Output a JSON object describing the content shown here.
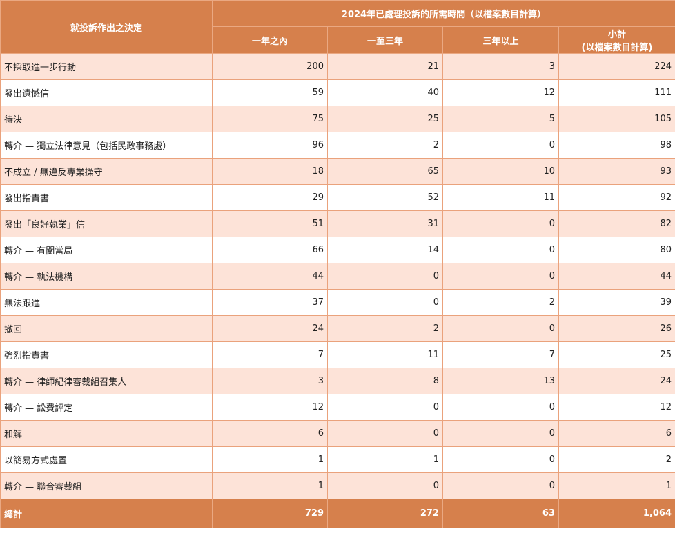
{
  "table": {
    "header": {
      "decision": "就投訴作出之決定",
      "group": "2024年已處理投訴的所需時間（以檔案數目計算）",
      "columns": [
        "一年之內",
        "一至三年",
        "三年以上"
      ],
      "subtotal": [
        "小計",
        "(以檔案數目計算)"
      ]
    },
    "rows": [
      [
        "不採取進一步行動",
        "200",
        "21",
        "3",
        "224"
      ],
      [
        "發出遺憾信",
        "59",
        "40",
        "12",
        "111"
      ],
      [
        "待決",
        "75",
        "25",
        "5",
        "105"
      ],
      [
        "轉介 — 獨立法律意見（包括民政事務處）",
        "96",
        "2",
        "0",
        "98"
      ],
      [
        "不成立 / 無違反專業操守",
        "18",
        "65",
        "10",
        "93"
      ],
      [
        "發出指責書",
        "29",
        "52",
        "11",
        "92"
      ],
      [
        "發出「良好執業」信",
        "51",
        "31",
        "0",
        "82"
      ],
      [
        "轉介 — 有關當局",
        "66",
        "14",
        "0",
        "80"
      ],
      [
        "轉介 — 執法機構",
        "44",
        "0",
        "0",
        "44"
      ],
      [
        "無法跟進",
        "37",
        "0",
        "2",
        "39"
      ],
      [
        "撤回",
        "24",
        "2",
        "0",
        "26"
      ],
      [
        "強烈指責書",
        "7",
        "11",
        "7",
        "25"
      ],
      [
        "轉介 — 律師紀律審裁組召集人",
        "3",
        "8",
        "13",
        "24"
      ],
      [
        "轉介 — 訟費評定",
        "12",
        "0",
        "0",
        "12"
      ],
      [
        "和解",
        "6",
        "0",
        "0",
        "6"
      ],
      [
        "以簡易方式處置",
        "1",
        "1",
        "0",
        "2"
      ],
      [
        "轉介 — 聯合審裁組",
        "1",
        "0",
        "0",
        "1"
      ]
    ],
    "total": [
      "總計",
      "729",
      "272",
      "63",
      "1,064"
    ]
  }
}
